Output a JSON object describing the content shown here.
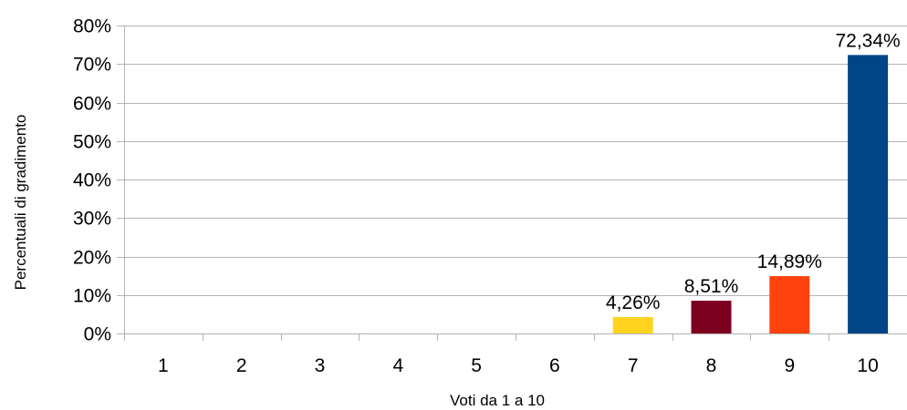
{
  "chart_data": {
    "type": "bar",
    "categories": [
      "1",
      "2",
      "3",
      "4",
      "5",
      "6",
      "7",
      "8",
      "9",
      "10"
    ],
    "values": [
      null,
      null,
      null,
      null,
      null,
      null,
      4.26,
      8.51,
      14.89,
      72.34
    ],
    "data_labels": [
      "",
      "",
      "",
      "",
      "",
      "",
      "4,26%",
      "8,51%",
      "14,89%",
      "72,34%"
    ],
    "bar_colors": [
      "#004586",
      "#004586",
      "#004586",
      "#004586",
      "#004586",
      "#004586",
      "#ffd320",
      "#7e0021",
      "#ff420e",
      "#004586"
    ],
    "xlabel": "Voti da 1 a 10",
    "ylabel": "Percentuali di gradimento",
    "ylim": [
      0,
      80
    ],
    "yticks": [
      0,
      10,
      20,
      30,
      40,
      50,
      60,
      70,
      80
    ],
    "ytick_labels": [
      "0%",
      "10%",
      "20%",
      "30%",
      "40%",
      "50%",
      "60%",
      "70%",
      "80%"
    ],
    "grid": true,
    "legend": "none"
  }
}
